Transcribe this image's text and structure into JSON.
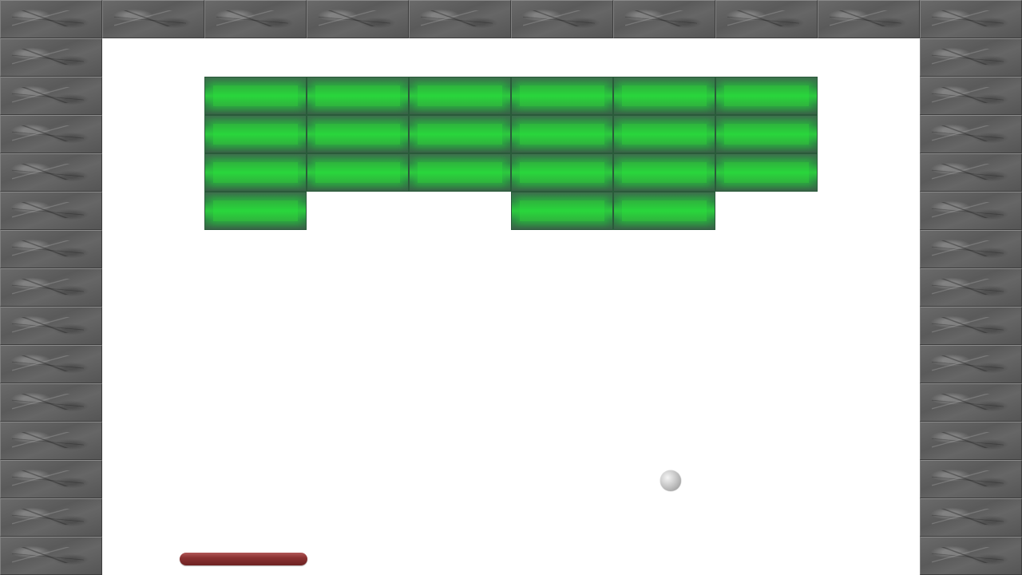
{
  "colors": {
    "brick": "#2ecc40",
    "brick_edge": "#2a5a3a",
    "paddle": "#8a3232",
    "ball": "#c8c8c8",
    "wall": "#5f5f5f",
    "field": "#ffffff"
  },
  "bricks": [
    [
      1,
      1,
      1,
      1,
      1,
      1
    ],
    [
      1,
      1,
      1,
      1,
      1,
      1
    ],
    [
      1,
      1,
      1,
      1,
      1,
      1
    ],
    [
      1,
      0,
      0,
      1,
      1,
      0
    ]
  ]
}
